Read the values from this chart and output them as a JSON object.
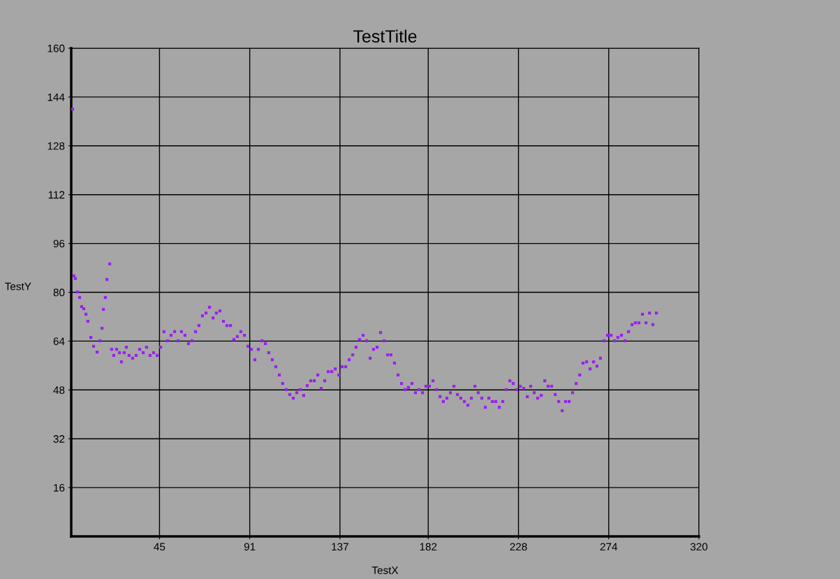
{
  "chart_data": {
    "type": "scatter",
    "title": "TestTitle",
    "xlabel": "TestX",
    "ylabel": "TestY",
    "xlim": [
      0,
      320
    ],
    "ylim": [
      0,
      160
    ],
    "xticks": [
      45,
      91,
      137,
      182,
      228,
      274,
      320
    ],
    "yticks": [
      16,
      32,
      48,
      64,
      80,
      96,
      112,
      128,
      144,
      160
    ],
    "grid": true,
    "marker": "square",
    "legend": false,
    "series": [
      {
        "color": "#9b1ff0",
        "x": [
          0.7,
          1.4,
          2.1,
          3.2,
          4.3,
          5.3,
          6.4,
          7.5,
          8.5,
          10,
          11.4,
          13.2,
          14.6,
          15.7,
          16.4,
          17.4,
          18.2,
          19.6,
          20.6,
          21.7,
          23.1,
          24.6,
          25.6,
          27,
          28.1,
          29.5,
          31.3,
          33.1,
          34.9,
          36.7,
          38.4,
          40.2,
          42,
          43.8,
          45.6,
          47.3,
          49.1,
          50.9,
          52.7,
          54.5,
          56.2,
          58,
          59.8,
          61.6,
          63.4,
          65.1,
          66.9,
          68.7,
          70.5,
          72.3,
          74,
          75.8,
          77.6,
          79.4,
          81.2,
          82.9,
          84.7,
          86.5,
          88.3,
          90.1,
          91.8,
          93.6,
          95.4,
          97.2,
          99,
          100.7,
          102.5,
          104.3,
          106.1,
          107.8,
          109.6,
          111.4,
          113.2,
          115,
          116.8,
          118.5,
          120.3,
          122.1,
          123.9,
          125.7,
          127.4,
          129.2,
          131,
          132.8,
          134.6,
          136.4,
          138.1,
          139.9,
          141.7,
          143.5,
          145.2,
          147,
          148.8,
          150.6,
          152.4,
          154.1,
          155.9,
          157.7,
          159.5,
          161.3,
          163,
          164.8,
          166.6,
          168.4,
          170.2,
          171.9,
          173.7,
          175.5,
          177.3,
          179.1,
          180.8,
          182.6,
          184.4,
          186.2,
          188,
          189.7,
          191.5,
          193.3,
          195.1,
          196.9,
          198.6,
          200.4,
          202.2,
          204,
          205.8,
          207.5,
          209.3,
          211.1,
          212.9,
          214.7,
          216.4,
          218.2,
          220,
          221.8,
          223.6,
          225.3,
          227.1,
          228.9,
          230.7,
          232.5,
          234.2,
          236,
          237.8,
          239.6,
          241.4,
          243.1,
          244.9,
          246.7,
          248.5,
          250.3,
          252,
          253.8,
          255.6,
          257.4,
          259.2,
          260.9,
          262.7,
          264.5,
          266.3,
          268,
          269.8,
          271.6,
          273.4,
          275.2,
          277,
          278.7,
          280.5,
          282.3,
          284.1,
          285.9,
          287.6,
          289.4,
          291.2,
          293,
          294.8,
          296.5,
          298.3
        ],
        "values": [
          140,
          85.4,
          84.5,
          80.1,
          78.3,
          75.3,
          74.6,
          72.8,
          70.5,
          65.2,
          62.3,
          60.4,
          64.1,
          68.2,
          74.4,
          78.3,
          84.2,
          89.3,
          61.3,
          59.3,
          61.3,
          60.2,
          57.2,
          60.2,
          62,
          59.3,
          58.4,
          59.3,
          61.3,
          60.2,
          62,
          59.3,
          60.2,
          59.3,
          62,
          67.1,
          64.1,
          65.9,
          67.1,
          64.1,
          67.1,
          65.9,
          63.2,
          64.1,
          67.1,
          69.1,
          72.3,
          73.2,
          75.1,
          71.6,
          73.2,
          73.9,
          70.5,
          69.1,
          69.1,
          64.5,
          65.5,
          67.1,
          65.9,
          62.3,
          61.3,
          57.9,
          61.3,
          64.1,
          63.2,
          60.2,
          57.9,
          55.6,
          52.9,
          50.1,
          48.1,
          46.5,
          45.3,
          47.1,
          48.1,
          46.2,
          49.4,
          51,
          51,
          52.9,
          48.5,
          51,
          54,
          54,
          54.9,
          52.9,
          55.6,
          55.6,
          57.9,
          59.5,
          62,
          64.5,
          65.9,
          64.1,
          58.4,
          61.3,
          62,
          66.8,
          64.1,
          59.5,
          59.5,
          56.8,
          52.9,
          50.1,
          48.1,
          48.8,
          50.1,
          47.1,
          48.1,
          47.1,
          49.2,
          49.2,
          51,
          48.1,
          45.8,
          44.2,
          45.3,
          47.1,
          49.2,
          46.5,
          45.3,
          44.2,
          43,
          45.3,
          49.2,
          47.1,
          45.3,
          42.3,
          45.3,
          44.2,
          44.2,
          42.3,
          44.2,
          48.1,
          51,
          50.1,
          48.1,
          49.2,
          48.5,
          45.8,
          49.2,
          47.1,
          45.3,
          46.2,
          51,
          49.2,
          49.2,
          46.5,
          44.2,
          41.2,
          44.2,
          44.2,
          47.1,
          50.1,
          52.9,
          56.8,
          57.2,
          54.9,
          57.2,
          55.8,
          58.4,
          64.1,
          65.9,
          65.9,
          64.1,
          65.2,
          65.9,
          64.1,
          67.1,
          69.4,
          70,
          70,
          72.8,
          70,
          73.2,
          69.4,
          73.2
        ]
      }
    ]
  }
}
